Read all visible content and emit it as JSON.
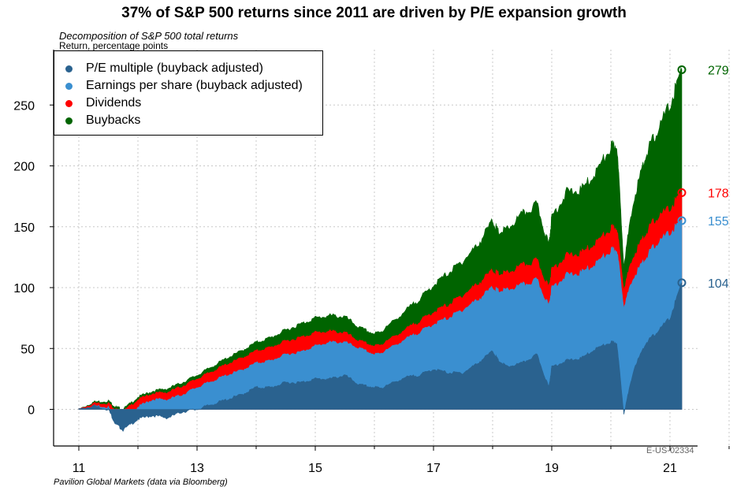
{
  "title": "37% of S&P 500 returns since 2011 are driven by P/E expansion growth",
  "subtitle": "Decomposition of S&P 500 total returns",
  "ylabel": "Return, percentage points",
  "source": "Pavilion Global Markets (data via Bloomberg)",
  "chart_code": "E-US-02334",
  "colors": {
    "pe": "#2a628f",
    "eps": "#3a8fd0",
    "dividends": "#ff0000",
    "buybacks": "#006400",
    "grid": "#c8c8c8"
  },
  "chart_data": {
    "type": "area",
    "stacked": true,
    "title": "37% of S&P 500 returns since 2011 are driven by P/E expansion growth",
    "subtitle": "Decomposition of S&P 500 total returns",
    "ylabel": "Return, percentage points",
    "xlabel": "",
    "xlim": [
      2010.6,
      2022.2
    ],
    "ylim": [
      -28,
      300
    ],
    "x_ticks": [
      {
        "value": 2011,
        "label": "11"
      },
      {
        "value": 2013,
        "label": "13"
      },
      {
        "value": 2015,
        "label": "15"
      },
      {
        "value": 2017,
        "label": "17"
      },
      {
        "value": 2019,
        "label": "19"
      },
      {
        "value": 2021,
        "label": "21"
      }
    ],
    "x_minor_ticks": [
      2012,
      2014,
      2016,
      2018,
      2020,
      2022
    ],
    "y_ticks": [
      0,
      50,
      100,
      150,
      200,
      250
    ],
    "grid": true,
    "legend_position": "top-left",
    "x": [
      2011.0,
      2011.25,
      2011.5,
      2011.62,
      2011.75,
      2012.0,
      2012.25,
      2012.5,
      2012.75,
      2013.0,
      2013.25,
      2013.5,
      2013.75,
      2014.0,
      2014.25,
      2014.5,
      2014.75,
      2015.0,
      2015.25,
      2015.5,
      2015.75,
      2016.0,
      2016.15,
      2016.5,
      2016.75,
      2017.0,
      2017.25,
      2017.5,
      2017.75,
      2018.0,
      2018.1,
      2018.25,
      2018.5,
      2018.75,
      2018.95,
      2019.0,
      2019.25,
      2019.5,
      2019.75,
      2020.0,
      2020.1,
      2020.22,
      2020.4,
      2020.6,
      2020.75,
      2021.0,
      2021.2
    ],
    "series": [
      {
        "name": "P/E multiple (buyback adjusted)",
        "color": "#2a628f",
        "values": [
          0,
          3,
          0,
          -12,
          -17,
          -8,
          -5,
          -7,
          -2,
          0,
          4,
          8,
          12,
          18,
          18,
          22,
          22,
          25,
          25,
          28,
          20,
          18,
          18,
          26,
          28,
          33,
          30,
          30,
          38,
          48,
          40,
          35,
          38,
          45,
          18,
          35,
          40,
          42,
          50,
          55,
          55,
          -3,
          35,
          55,
          62,
          75,
          104
        ]
      },
      {
        "name": "Earnings per share (buyback adjusted)",
        "color": "#3a8fd0",
        "values": [
          0,
          3,
          2,
          -10,
          -12,
          2,
          8,
          8,
          12,
          18,
          23,
          28,
          32,
          38,
          40,
          45,
          47,
          52,
          55,
          55,
          50,
          45,
          47,
          57,
          63,
          70,
          75,
          82,
          90,
          100,
          97,
          98,
          102,
          106,
          85,
          100,
          110,
          112,
          120,
          130,
          132,
          85,
          110,
          125,
          135,
          145,
          155
        ]
      },
      {
        "name": "Dividends",
        "color": "#ff0000",
        "values": [
          0,
          5,
          5,
          0,
          -2,
          8,
          13,
          14,
          19,
          25,
          31,
          37,
          42,
          48,
          51,
          56,
          59,
          63,
          64,
          63,
          56,
          52,
          54,
          65,
          72,
          80,
          86,
          94,
          103,
          114,
          111,
          112,
          118,
          122,
          100,
          115,
          126,
          128,
          137,
          148,
          150,
          100,
          128,
          145,
          156,
          165,
          178
        ]
      },
      {
        "name": "Buybacks",
        "color": "#006400",
        "values": [
          0,
          6,
          7,
          2,
          0,
          10,
          15,
          17,
          22,
          28,
          35,
          42,
          48,
          55,
          59,
          65,
          70,
          75,
          77,
          76,
          67,
          62,
          65,
          80,
          90,
          102,
          112,
          122,
          135,
          155,
          145,
          148,
          160,
          168,
          135,
          158,
          178,
          180,
          195,
          215,
          218,
          120,
          175,
          210,
          225,
          250,
          279
        ]
      }
    ],
    "end_labels": [
      {
        "series": "Buybacks",
        "value": 279,
        "label": "279"
      },
      {
        "series": "Dividends",
        "value": 178,
        "label": "178"
      },
      {
        "series": "Earnings per share (buyback adjusted)",
        "value": 155,
        "label": "155"
      },
      {
        "series": "P/E multiple (buyback adjusted)",
        "value": 104,
        "label": "104"
      }
    ]
  },
  "legend": {
    "items": [
      {
        "label": "P/E multiple (buyback adjusted)",
        "color": "#2a628f"
      },
      {
        "label": "Earnings per share (buyback adjusted)",
        "color": "#3a8fd0"
      },
      {
        "label": "Dividends",
        "color": "#ff0000"
      },
      {
        "label": "Buybacks",
        "color": "#006400"
      }
    ]
  }
}
